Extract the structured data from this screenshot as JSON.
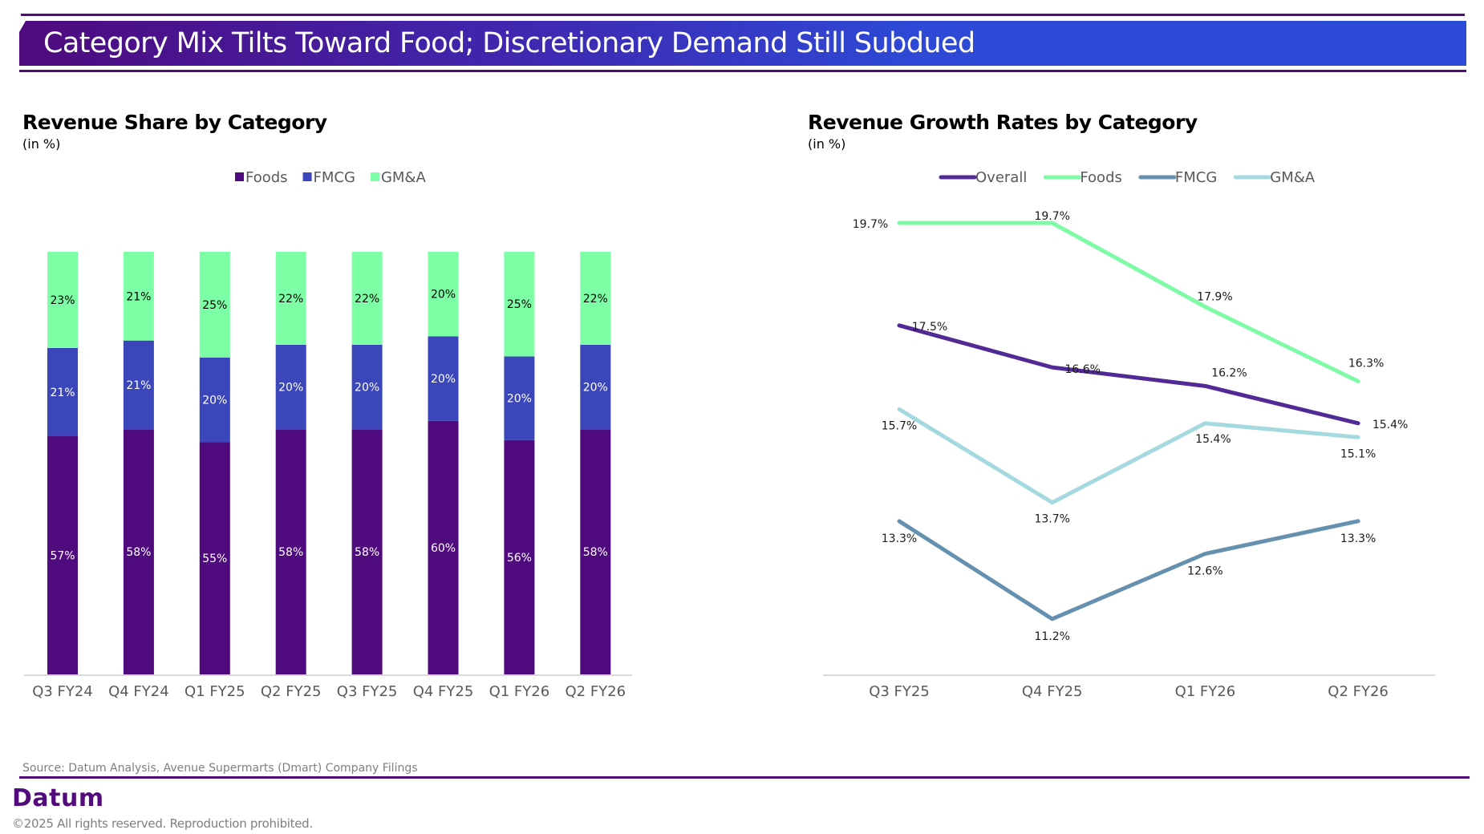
{
  "header": {
    "title": "Category Mix Tilts Toward Food; Discretionary Demand Still Subdued"
  },
  "colors": {
    "foods_bar": "#4f0a7e",
    "fmcg_bar": "#3a46b9",
    "gma_bar": "#7dffa6",
    "overall_line": "#522a96",
    "foods_line": "#7dfba6",
    "fmcg_line": "#6590b0",
    "gma_line": "#a4d9e0"
  },
  "chart_data": [
    {
      "type": "bar",
      "stacked": true,
      "title": "Revenue Share by Category",
      "subtitle": "(in %)",
      "legend_position": "top-center",
      "categories": [
        "Q3 FY24",
        "Q4 FY24",
        "Q1 FY25",
        "Q2 FY25",
        "Q3 FY25",
        "Q4 FY25",
        "Q1 FY26",
        "Q2 FY26"
      ],
      "series": [
        {
          "name": "Foods",
          "values": [
            57,
            58,
            55,
            58,
            58,
            60,
            56,
            58
          ]
        },
        {
          "name": "FMCG",
          "values": [
            21,
            21,
            20,
            20,
            20,
            20,
            20,
            20
          ]
        },
        {
          "name": "GM&A",
          "values": [
            23,
            21,
            25,
            22,
            22,
            20,
            25,
            22
          ]
        }
      ],
      "data_label_suffix": "%",
      "xlabel": "",
      "ylabel": "",
      "ylim": [
        0,
        100
      ],
      "grid": false
    },
    {
      "type": "line",
      "title": "Revenue Growth Rates by Category",
      "subtitle": "(in %)",
      "legend_position": "top-center",
      "categories": [
        "Q3 FY25",
        "Q4 FY25",
        "Q1 FY26",
        "Q2 FY26"
      ],
      "series": [
        {
          "name": "Overall",
          "values": [
            17.5,
            16.6,
            16.2,
            15.4
          ]
        },
        {
          "name": "Foods",
          "values": [
            19.7,
            19.7,
            17.9,
            16.3
          ]
        },
        {
          "name": "FMCG",
          "values": [
            13.3,
            11.2,
            12.6,
            13.3
          ]
        },
        {
          "name": "GM&A",
          "values": [
            15.7,
            13.7,
            15.4,
            15.1
          ]
        }
      ],
      "data_label_suffix": "%",
      "xlabel": "",
      "ylabel": "",
      "grid": false
    }
  ],
  "footer": {
    "source": "Source: Datum Analysis, Avenue Supermarts (Dmart) Company Filings",
    "brand": "Datum",
    "copyright": "©2025 All rights reserved. Reproduction prohibited."
  }
}
